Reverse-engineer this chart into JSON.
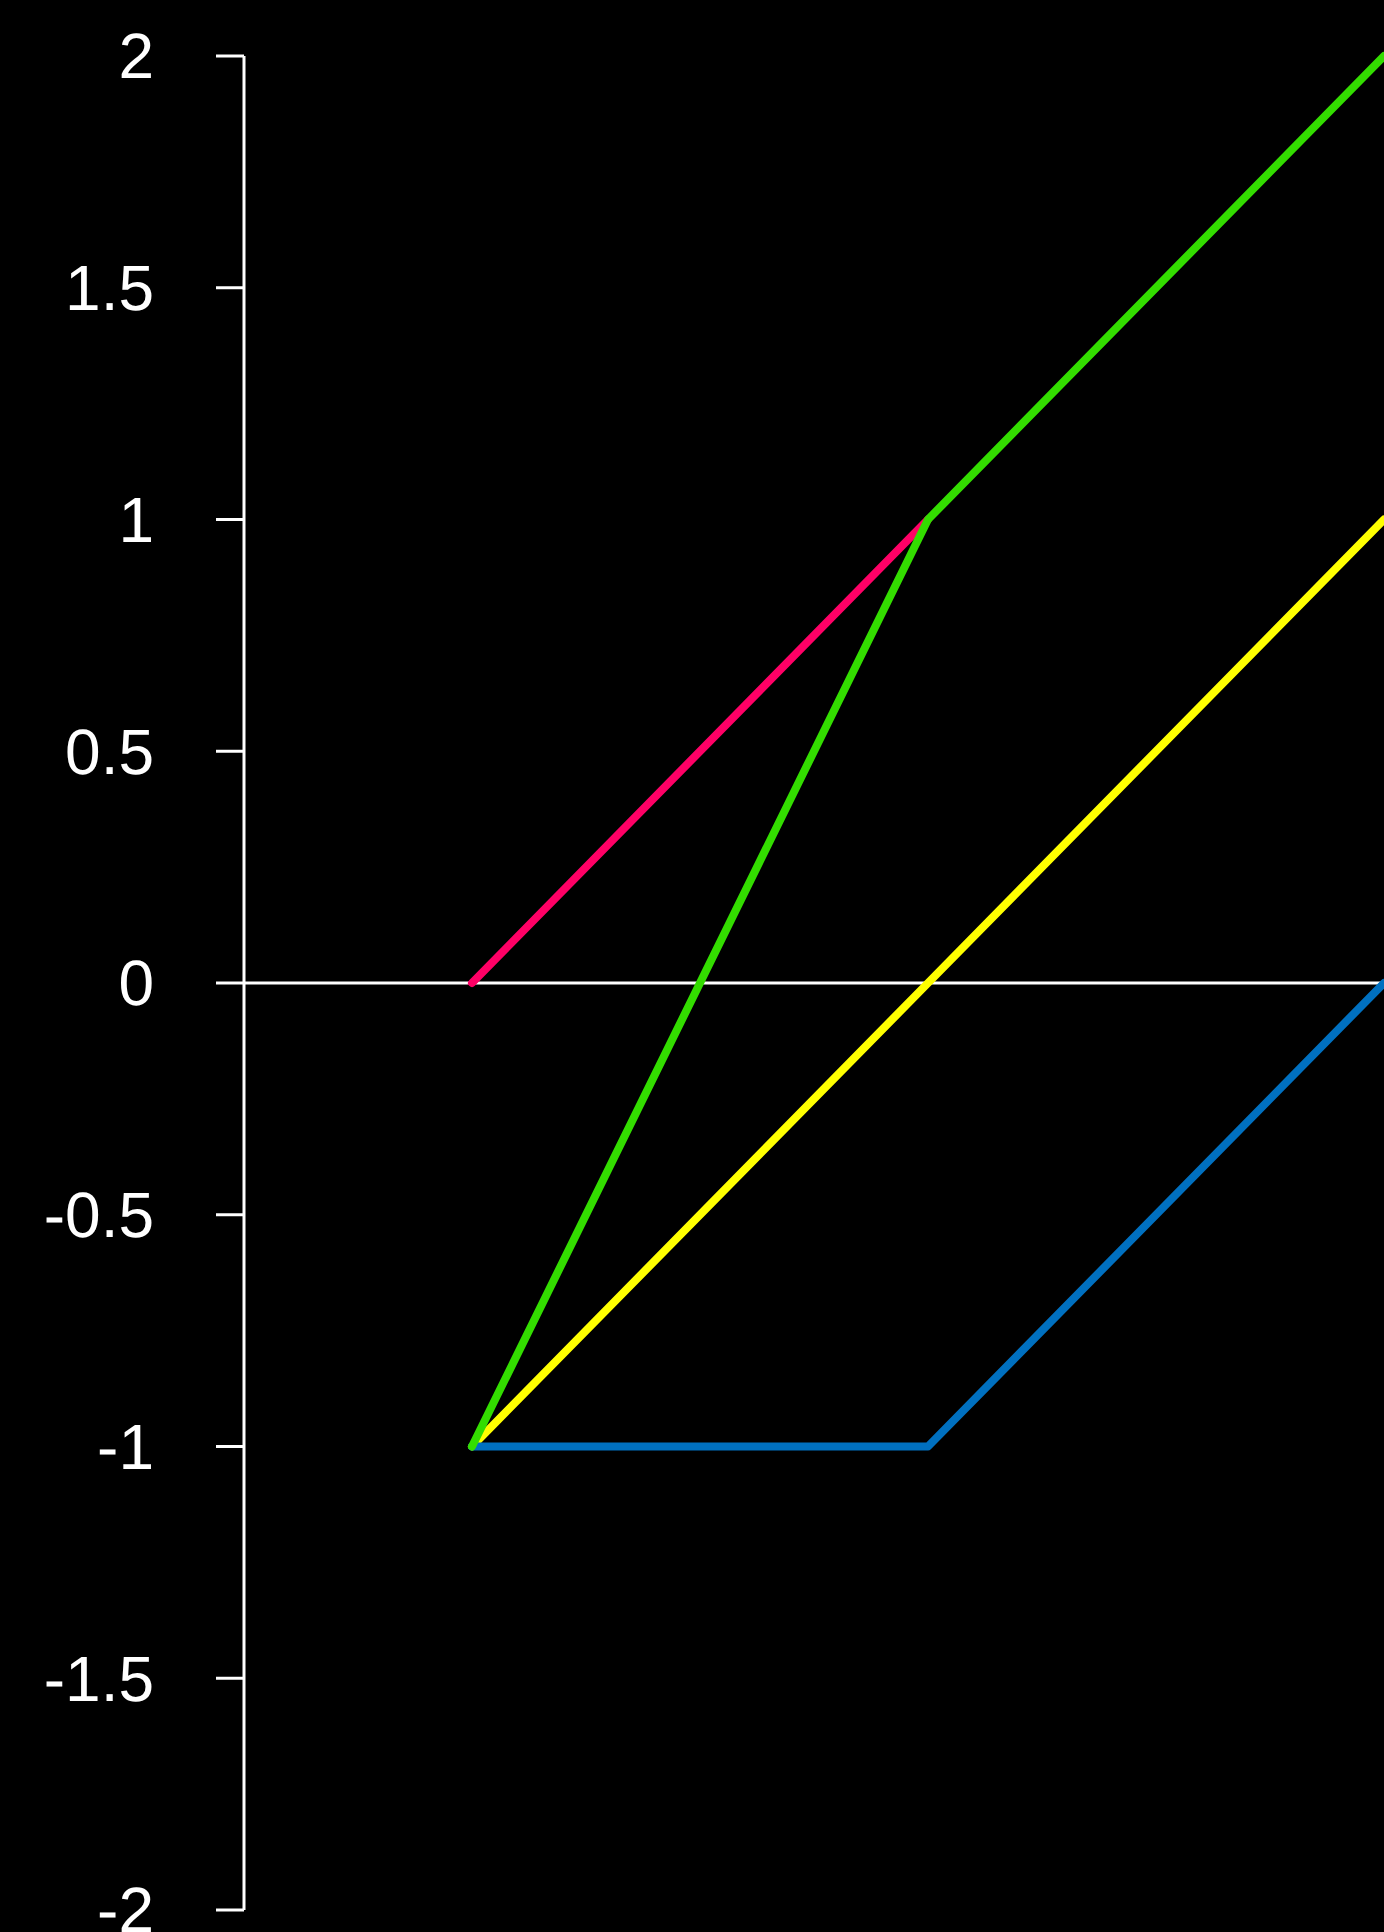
{
  "chart_data": {
    "type": "line",
    "categories": [
      null,
      null,
      null
    ],
    "series": [
      {
        "color": "#ff0066",
        "values": [
          0,
          1,
          null
        ]
      },
      {
        "color": "#ffff00",
        "values": [
          -1,
          0,
          1
        ]
      },
      {
        "color": "#0070c0",
        "values": [
          -1,
          -1,
          0
        ]
      },
      {
        "color": "#33dd00",
        "values": [
          -1,
          1,
          2
        ]
      }
    ],
    "ylim": [
      -2,
      2
    ],
    "yticks": [
      -2,
      -1.5,
      -1,
      -0.5,
      0,
      0.5,
      1,
      1.5,
      2
    ],
    "tick_labels": "y",
    "ref_lines": [
      {
        "axis": "y",
        "value": 0,
        "color": "#ffffff"
      }
    ],
    "marker": "none",
    "line_style": "solid"
  }
}
